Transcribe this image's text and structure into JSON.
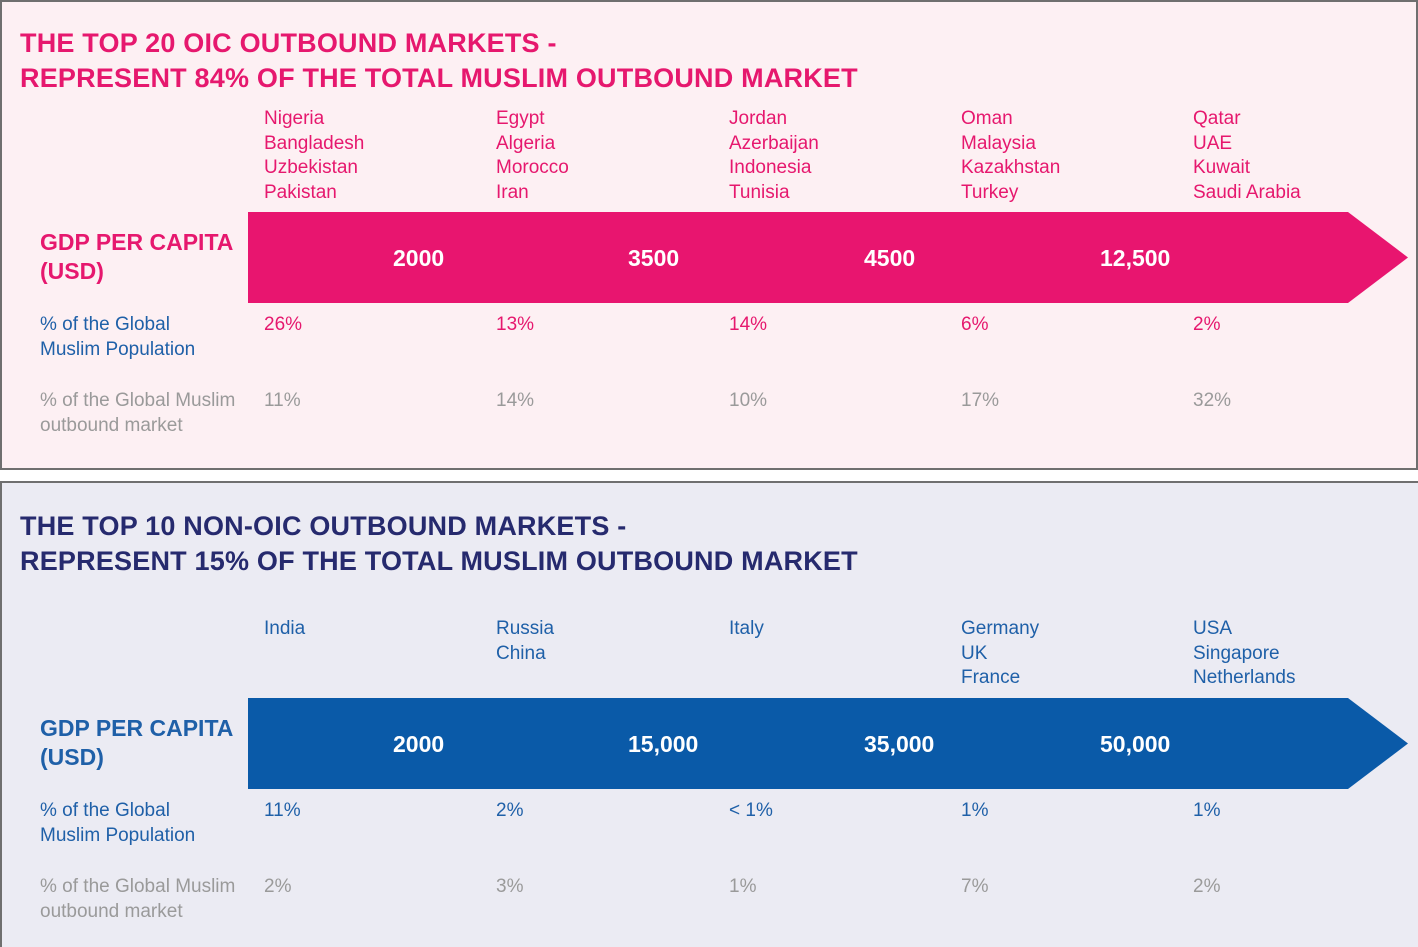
{
  "oic": {
    "title_line1": "THE TOP 20 OIC OUTBOUND MARKETS -",
    "title_line2": "REPRESENT 84% OF THE TOTAL MUSLIM OUTBOUND MARKET",
    "gdp_label": "GDP PER CAPITA\n(USD)",
    "pop_label": "% of the Global\nMuslim Population",
    "mkt_label": "% of the Global Muslim\noutbound market",
    "arrow_color": "#e8156f",
    "columns": [
      {
        "countries": [
          "Nigeria",
          "Bangladesh",
          "Uzbekistan",
          "Pakistan"
        ],
        "gdp": "2000",
        "pop": "26%",
        "mkt": "11%"
      },
      {
        "countries": [
          "Egypt",
          "Algeria",
          "Morocco",
          "Iran"
        ],
        "gdp": "3500",
        "pop": "13%",
        "mkt": "14%"
      },
      {
        "countries": [
          "Jordan",
          "Azerbaijan",
          "Indonesia",
          "Tunisia"
        ],
        "gdp": "4500",
        "pop": "14%",
        "mkt": "10%"
      },
      {
        "countries": [
          "Oman",
          "Malaysia",
          "Kazakhstan",
          "Turkey"
        ],
        "gdp": "12,500",
        "pop": "6%",
        "mkt": "17%"
      },
      {
        "countries": [
          "Qatar",
          "UAE",
          "Kuwait",
          "Saudi Arabia"
        ],
        "gdp": "",
        "pop": "2%",
        "mkt": "32%"
      }
    ]
  },
  "non_oic": {
    "title_line1": "THE TOP 10 NON-OIC OUTBOUND MARKETS -",
    "title_line2": "REPRESENT 15% OF THE TOTAL MUSLIM OUTBOUND MARKET",
    "gdp_label": "GDP PER CAPITA\n(USD)",
    "pop_label": "% of the Global\nMuslim Population",
    "mkt_label": "% of the Global Muslim\noutbound market",
    "arrow_color": "#0a5aa8",
    "columns": [
      {
        "countries": [
          "India"
        ],
        "gdp": "2000",
        "pop": "11%",
        "mkt": "2%"
      },
      {
        "countries": [
          "Russia",
          "China"
        ],
        "gdp": "15,000",
        "pop": "2%",
        "mkt": "3%"
      },
      {
        "countries": [
          "Italy"
        ],
        "gdp": "35,000",
        "pop": "< 1%",
        "mkt": "1%"
      },
      {
        "countries": [
          "Germany",
          "UK",
          "France"
        ],
        "gdp": "50,000",
        "pop": "1%",
        "mkt": "7%"
      },
      {
        "countries": [
          "USA",
          "Singapore",
          "Netherlands"
        ],
        "gdp": "",
        "pop": "1%",
        "mkt": "2%"
      }
    ]
  }
}
